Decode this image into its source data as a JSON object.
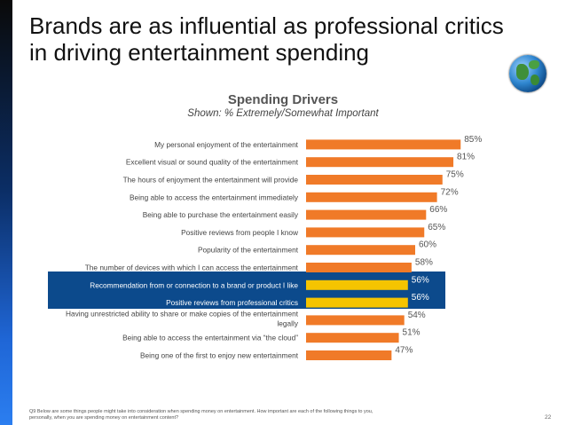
{
  "slide": {
    "title": "Brands are as influential as professional critics in driving entertainment spending",
    "footnote": "Q9 Below are some things people might take into consideration when spending money on entertainment. How important are each of the following things to you, personally, when you are spending money on entertainment content?",
    "page_number": "22"
  },
  "chart_data": {
    "type": "bar",
    "orientation": "horizontal",
    "title": "Spending Drivers",
    "subtitle": "Shown: % Extremely/Somewhat Important",
    "categories": [
      [
        "My personal enjoyment of the entertainment"
      ],
      [
        "Excellent visual or sound quality of the entertainment"
      ],
      [
        "The hours of enjoyment the entertainment will provide"
      ],
      [
        "Being able to access the entertainment immediately"
      ],
      [
        "Being able to purchase the entertainment easily"
      ],
      [
        "Positive reviews from people I know"
      ],
      [
        "Popularity of the entertainment"
      ],
      [
        "The number of devices with which I can access the entertainment"
      ],
      [
        "Recommendation from or connection to a brand or product I like"
      ],
      [
        "Positive reviews from professional critics"
      ],
      [
        "Having unrestricted ability to share or make copies of the entertainment",
        "legally"
      ],
      [
        "Being able to access the entertainment via “the cloud”"
      ],
      [
        "Being one of the first to enjoy new entertainment"
      ]
    ],
    "values": [
      85,
      81,
      75,
      72,
      66,
      65,
      60,
      58,
      56,
      56,
      54,
      51,
      47
    ],
    "value_labels": [
      "85%",
      "81%",
      "75%",
      "72%",
      "66%",
      "65%",
      "60%",
      "58%",
      "56%",
      "56%",
      "54%",
      "51%",
      "47%"
    ],
    "highlighted": [
      8,
      9
    ],
    "xlim": [
      0,
      100
    ],
    "colors": {
      "bar": "#f07a28",
      "highlight_bar": "#f5c400",
      "highlight_band": "#0c4a8c",
      "label": "#444444",
      "highlight_label": "#ffffff",
      "value_label": "#555555"
    }
  }
}
